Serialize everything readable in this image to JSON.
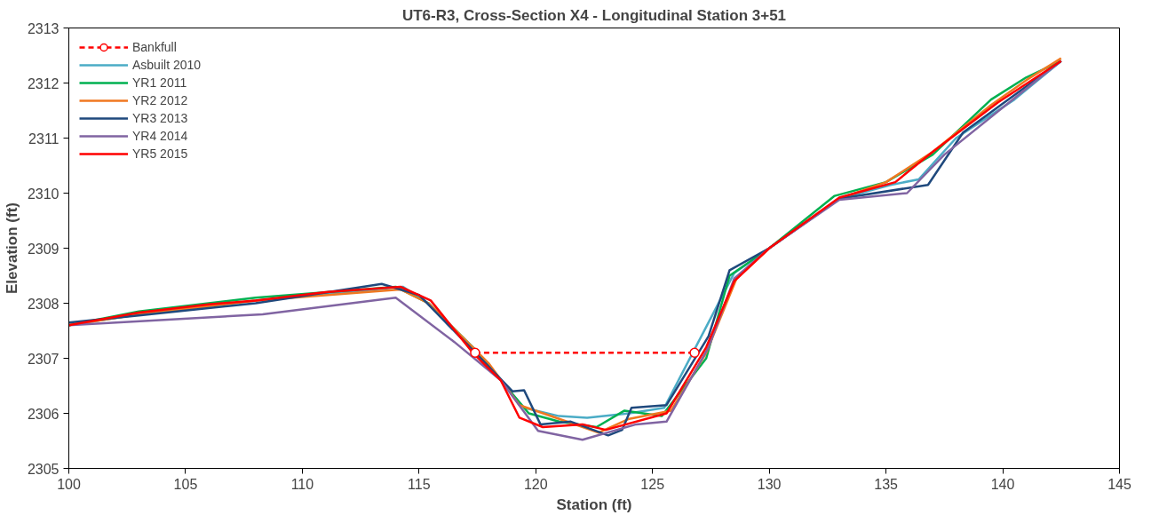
{
  "chart_data": {
    "type": "line",
    "title": "UT6-R3, Cross-Section X4 - Longitudinal Station 3+51",
    "xlabel": "Station (ft)",
    "ylabel": "Elevation (ft)",
    "xlim": [
      100,
      145
    ],
    "xticks": [
      100,
      105,
      110,
      115,
      120,
      125,
      130,
      135,
      140,
      145
    ],
    "ylim": [
      2305,
      2313
    ],
    "yticks": [
      2305,
      2306,
      2307,
      2308,
      2309,
      2310,
      2311,
      2312,
      2313
    ],
    "grid": false,
    "legend": "top left",
    "marker": "none",
    "line_style": "solid",
    "series": [
      {
        "name": "Bankfull",
        "color": "#ff0000",
        "line_style": "dashed",
        "marker": "circle",
        "x": [
          117.4,
          126.8
        ],
        "values": [
          2307.1,
          2307.1
        ]
      },
      {
        "name": "Asbuilt 2010",
        "color": "#4bacc6",
        "x": [
          100,
          103,
          108,
          114.3,
          115.4,
          117.3,
          118.5,
          119.5,
          121,
          122.2,
          124,
          125.5,
          128.5,
          130,
          133,
          135.2,
          136.4,
          138,
          140.5,
          142.5
        ],
        "values": [
          2307.6,
          2307.8,
          2308.05,
          2308.3,
          2308.0,
          2307.2,
          2306.6,
          2306.1,
          2305.95,
          2305.92,
          2306.0,
          2306.1,
          2308.55,
          2309.0,
          2309.9,
          2310.15,
          2310.25,
          2311.0,
          2311.7,
          2312.4
        ]
      },
      {
        "name": "YR1 2011",
        "color": "#00b050",
        "x": [
          100,
          103,
          108,
          114,
          115.4,
          117.3,
          118.5,
          119.7,
          121,
          122.6,
          123.8,
          125.4,
          127.3,
          128.3,
          130,
          132.8,
          135,
          137,
          139.5,
          141,
          142.5
        ],
        "values": [
          2307.6,
          2307.85,
          2308.1,
          2308.3,
          2308.0,
          2307.2,
          2306.6,
          2306.0,
          2305.85,
          2305.75,
          2306.05,
          2305.95,
          2307.0,
          2308.5,
          2309.0,
          2309.95,
          2310.2,
          2310.7,
          2311.7,
          2312.1,
          2312.4
        ]
      },
      {
        "name": "YR2 2012",
        "color": "#f07820",
        "x": [
          100,
          103,
          108,
          114.2,
          115.4,
          117.3,
          118,
          119.3,
          121,
          122.7,
          124,
          125.8,
          127.3,
          128.6,
          130,
          133,
          135,
          137,
          139.5,
          141,
          142.5
        ],
        "values": [
          2307.6,
          2307.8,
          2308.05,
          2308.25,
          2308.0,
          2307.2,
          2306.9,
          2306.15,
          2305.9,
          2305.65,
          2305.9,
          2306.05,
          2307.1,
          2308.45,
          2309.0,
          2309.9,
          2310.2,
          2310.75,
          2311.6,
          2312.05,
          2312.45
        ]
      },
      {
        "name": "YR3 2013",
        "color": "#1f497d",
        "x": [
          100,
          103,
          108,
          113.4,
          115,
          117.3,
          119,
          119.5,
          120.2,
          121.5,
          123.1,
          123.7,
          124.1,
          125.6,
          127.4,
          128.3,
          130,
          133,
          136.8,
          138.3,
          142.5
        ],
        "values": [
          2307.65,
          2307.78,
          2308.0,
          2308.35,
          2308.15,
          2307.15,
          2306.4,
          2306.42,
          2305.8,
          2305.85,
          2305.6,
          2305.7,
          2306.1,
          2306.15,
          2307.4,
          2308.6,
          2309.0,
          2309.9,
          2310.15,
          2311.1,
          2312.4
        ]
      },
      {
        "name": "YR4 2014",
        "color": "#8064a2",
        "x": [
          100,
          108.3,
          114,
          116.5,
          118.5,
          120.1,
          122,
          124.3,
          125.6,
          127.4,
          128.5,
          130,
          133,
          135.9,
          137.5,
          141.6,
          142.5
        ],
        "values": [
          2307.6,
          2307.8,
          2308.1,
          2307.3,
          2306.6,
          2305.68,
          2305.52,
          2305.8,
          2305.85,
          2307.2,
          2308.45,
          2309.0,
          2309.88,
          2310.0,
          2310.7,
          2312.1,
          2312.4
        ]
      },
      {
        "name": "YR5 2015",
        "color": "#ff0000",
        "x": [
          100,
          103,
          106,
          108,
          111,
          114.2,
          115.5,
          117.3,
          118.5,
          119.3,
          120.3,
          122,
          123,
          125.6,
          127.3,
          128.5,
          130,
          133,
          135.4,
          137,
          139.8,
          142.5
        ],
        "values": [
          2307.6,
          2307.83,
          2307.98,
          2308.05,
          2308.2,
          2308.3,
          2308.05,
          2307.1,
          2306.6,
          2305.92,
          2305.75,
          2305.8,
          2305.7,
          2306.0,
          2307.2,
          2308.4,
          2309.0,
          2309.92,
          2310.2,
          2310.75,
          2311.65,
          2312.4
        ]
      }
    ]
  }
}
